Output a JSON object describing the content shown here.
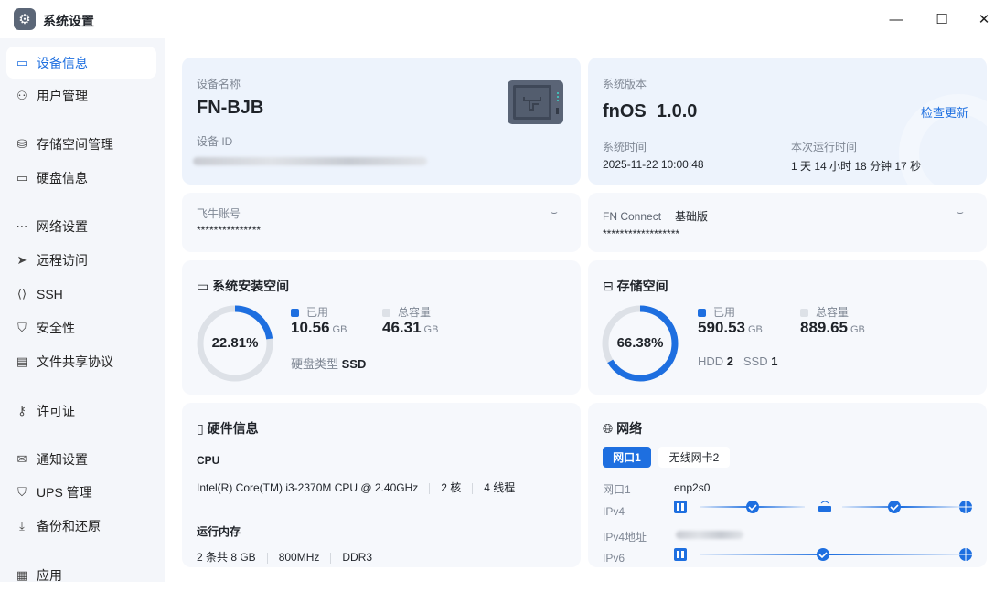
{
  "window": {
    "title": "系统设置",
    "minimize": "—",
    "maximize": "☐",
    "close": "✕"
  },
  "sidebar": {
    "items": [
      {
        "label": "设备信息",
        "icon": "drive-icon",
        "glyph": "▭",
        "active": true
      },
      {
        "label": "用户管理",
        "icon": "user-icon",
        "glyph": "⚇"
      },
      {
        "label": "存储空间管理",
        "icon": "storage-icon",
        "glyph": "⛁"
      },
      {
        "label": "硬盘信息",
        "icon": "disk-icon",
        "glyph": "▭"
      },
      {
        "label": "网络设置",
        "icon": "network-icon",
        "glyph": "⋯"
      },
      {
        "label": "远程访问",
        "icon": "send-icon",
        "glyph": "➤"
      },
      {
        "label": "SSH",
        "icon": "terminal-icon",
        "glyph": "⟨⟩"
      },
      {
        "label": "安全性",
        "icon": "shield-icon",
        "glyph": "⛉"
      },
      {
        "label": "文件共享协议",
        "icon": "file-icon",
        "glyph": "▤"
      },
      {
        "label": "许可证",
        "icon": "key-icon",
        "glyph": "⚷"
      },
      {
        "label": "通知设置",
        "icon": "mail-icon",
        "glyph": "✉"
      },
      {
        "label": "UPS 管理",
        "icon": "ups-shield-icon",
        "glyph": "⛉"
      },
      {
        "label": "备份和还原",
        "icon": "backup-icon",
        "glyph": "⤓"
      },
      {
        "label": "应用",
        "icon": "apps-icon",
        "glyph": "▦"
      }
    ]
  },
  "device": {
    "name_label": "设备名称",
    "name": "FN-BJB",
    "id_label": "设备 ID"
  },
  "system": {
    "version_label": "系统版本",
    "version": "fnOS  1.0.0",
    "check_update": "检查更新",
    "time_label": "系统时间",
    "time": "2025-11-22 10:00:48",
    "uptime_label": "本次运行时间",
    "uptime": "1 天 14 小时 18 分钟 17 秒"
  },
  "account": {
    "label": "飞牛账号",
    "value": "***************"
  },
  "connect": {
    "label": "FN Connect",
    "edition": "基础版",
    "value": "******************"
  },
  "install_space": {
    "title": "系统安装空间",
    "percent": 22.81,
    "percent_text": "22.81%",
    "used_label": "已用",
    "used": "10.56",
    "used_unit": "GB",
    "total_label": "总容量",
    "total": "46.31",
    "total_unit": "GB",
    "disk_type_label": "硬盘类型",
    "disk_type": "SSD"
  },
  "storage": {
    "title": "存储空间",
    "percent": 66.38,
    "percent_text": "66.38%",
    "used_label": "已用",
    "used": "590.53",
    "used_unit": "GB",
    "total_label": "总容量",
    "total": "889.65",
    "total_unit": "GB",
    "hdd_label": "HDD",
    "hdd": "2",
    "ssd_label": "SSD",
    "ssd": "1"
  },
  "hardware": {
    "title": "硬件信息",
    "cpu_label": "CPU",
    "cpu_model": "Intel(R) Core(TM) i3-2370M CPU @ 2.40GHz",
    "cores": "2 核",
    "threads": "4 线程",
    "mem_label": "运行内存",
    "mem_sticks": "2 条共 8 GB",
    "mem_freq": "800MHz",
    "mem_type": "DDR3"
  },
  "network": {
    "title": "网络",
    "tabs": [
      "网口1",
      "无线网卡2"
    ],
    "iface_label": "网口1",
    "iface": "enp2s0",
    "ipv4_label": "IPv4",
    "ipv4_addr_label": "IPv4地址",
    "ipv6_label": "IPv6"
  },
  "colors": {
    "accent": "#1e6fe0",
    "ring_track": "#dde1e7",
    "card": "#f6f8fc",
    "card_blue": "#edf3fc"
  }
}
